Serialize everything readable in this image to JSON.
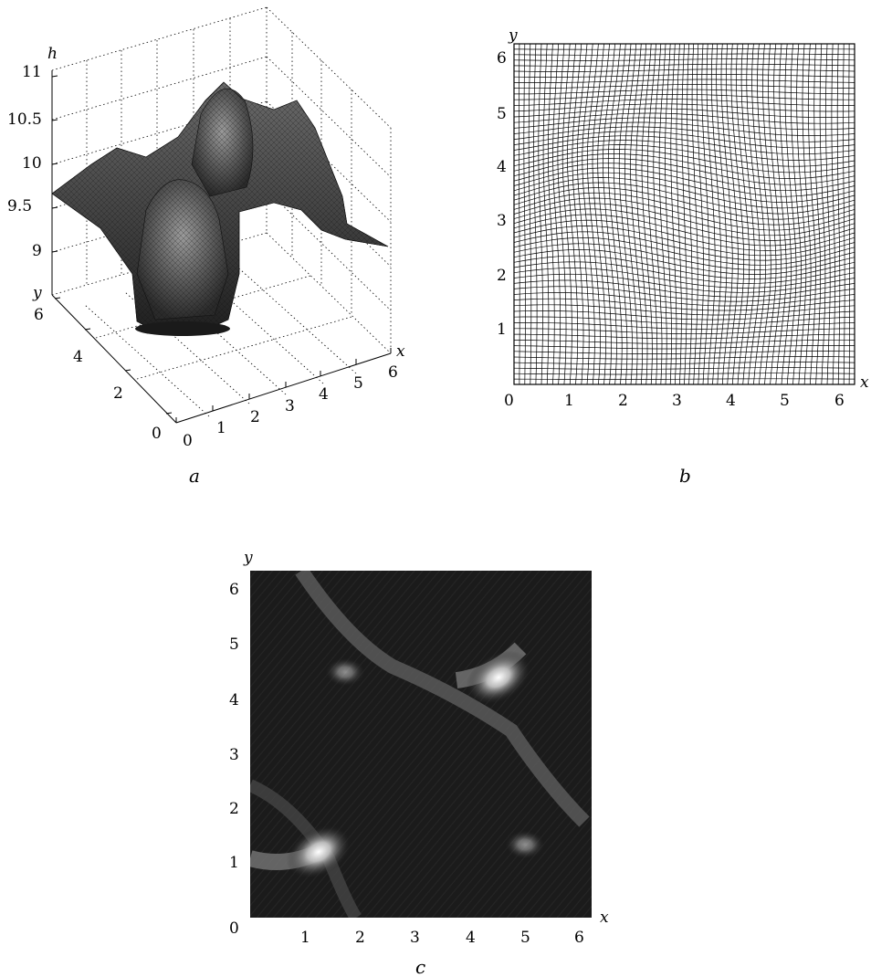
{
  "panel_a": {
    "caption": "a",
    "z_label": "h",
    "x_label": "x",
    "y_label": "y",
    "z_ticks": [
      "11",
      "10.5",
      "10",
      "9.5",
      "9"
    ],
    "x_ticks": [
      "0",
      "1",
      "2",
      "3",
      "4",
      "5",
      "6"
    ],
    "y_ticks": [
      "0",
      "2",
      "4",
      "6"
    ]
  },
  "panel_b": {
    "caption": "b",
    "x_label": "x",
    "y_label": "y",
    "x_ticks": [
      "0",
      "1",
      "2",
      "3",
      "4",
      "5",
      "6"
    ],
    "y_ticks": [
      "1",
      "2",
      "3",
      "4",
      "5",
      "6"
    ]
  },
  "panel_c": {
    "caption": "c",
    "x_label": "x",
    "y_label": "y",
    "origin_label": "0",
    "x_ticks": [
      "1",
      "2",
      "3",
      "4",
      "5",
      "6"
    ],
    "y_ticks": [
      "1",
      "2",
      "3",
      "4",
      "5",
      "6"
    ]
  },
  "chart_data": [
    {
      "type": "surface",
      "zlim": [
        8.8,
        11
      ],
      "xlim": [
        0,
        6.28
      ],
      "ylim": [
        0,
        6.28
      ],
      "grid": true,
      "peaks": [
        {
          "x": 1.5,
          "y": 1.5,
          "h": 10.8
        },
        {
          "x": 4.7,
          "y": 4.7,
          "h": 10.8
        }
      ]
    },
    {
      "type": "deformed-mesh",
      "xlim": [
        0,
        6.28
      ],
      "ylim": [
        0,
        6.28
      ],
      "grid_lines_per_axis": 64
    },
    {
      "type": "heatmap",
      "colormap": "grayscale",
      "xlim": [
        0,
        6.28
      ],
      "ylim": [
        0,
        6.28
      ],
      "bright_spots": [
        {
          "x": 1.3,
          "y": 1.3
        },
        {
          "x": 4.7,
          "y": 4.5
        }
      ]
    }
  ]
}
